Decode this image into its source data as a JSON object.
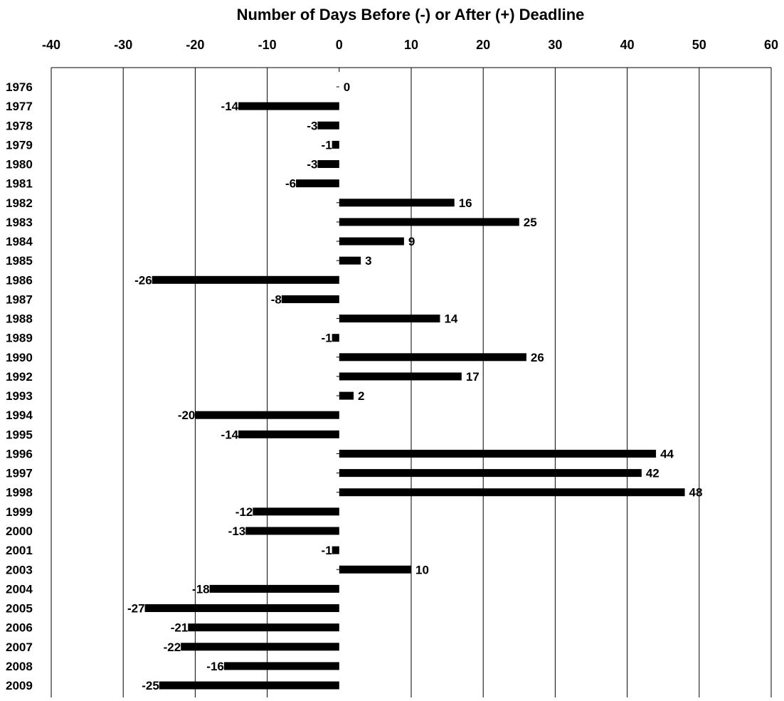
{
  "chart_data": {
    "type": "bar",
    "orientation": "horizontal",
    "title": "Number of Days Before (-) or After (+) Deadline",
    "xlabel": "",
    "ylabel": "",
    "xlim": [
      -40,
      60
    ],
    "x_ticks": [
      -40,
      -30,
      -20,
      -10,
      0,
      10,
      20,
      30,
      40,
      50,
      60
    ],
    "x_axis_position": "top",
    "grid": true,
    "bar_color": "#000000",
    "categories": [
      "1976",
      "1977",
      "1978",
      "1979",
      "1980",
      "1981",
      "1982",
      "1983",
      "1984",
      "1985",
      "1986",
      "1987",
      "1988",
      "1989",
      "1990",
      "1992",
      "1993",
      "1994",
      "1995",
      "1996",
      "1997",
      "1998",
      "1999",
      "2000",
      "2001",
      "2003",
      "2004",
      "2005",
      "2006",
      "2007",
      "2008",
      "2009"
    ],
    "values": [
      0,
      -14,
      -3,
      -1,
      -3,
      -6,
      16,
      25,
      9,
      3,
      -26,
      -8,
      14,
      -1,
      26,
      17,
      2,
      -20,
      -14,
      44,
      42,
      48,
      -12,
      -13,
      -1,
      10,
      -18,
      -27,
      -21,
      -22,
      -16,
      -25
    ]
  }
}
